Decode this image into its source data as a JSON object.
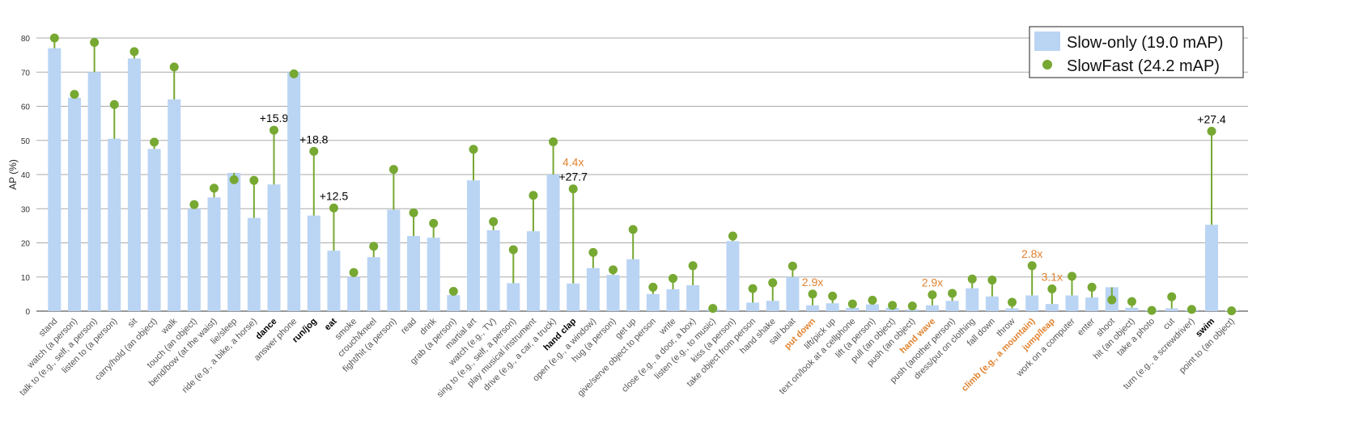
{
  "chart_data": {
    "type": "bar_dot",
    "y_label": "AP (%)",
    "ylim": [
      0,
      80
    ],
    "yticks": [
      0,
      10,
      20,
      30,
      40,
      50,
      60,
      70,
      80
    ],
    "grid": true,
    "legend": "upper right",
    "categories": [
      "stand",
      "watch (a person)",
      "talk to (e.g., self, a person)",
      "listen to (a person)",
      "sit",
      "carry/hold (an object)",
      "walk",
      "touch (an object)",
      "bend/bow (at the waist)",
      "lie/sleep",
      "ride (e.g., a bike, a horse)",
      "dance",
      "answer phone",
      "run/jog",
      "eat",
      "smoke",
      "crouch/kneel",
      "fight/hit (a person)",
      "read",
      "drink",
      "grab (a person)",
      "martial art",
      "watch (e.g., TV)",
      "sing to (e.g., self, a person)",
      "play musical instrument",
      "drive (e.g., a car, a truck)",
      "hand clap",
      "open (e.g., a window)",
      "hug (a person)",
      "get up",
      "give/serve object to person",
      "write",
      "close (e.g., a door, a box)",
      "listen (e.g., to music)",
      "kiss (a person)",
      "take object from person",
      "hand shake",
      "sail boat",
      "put down",
      "lift/pick up",
      "text on/look at a cellphone",
      "lift (a person)",
      "pull (an object)",
      "push (an object)",
      "hand wave",
      "push (another person)",
      "dress/put on clothing",
      "fall down",
      "throw",
      "climb (e.g., a mountain)",
      "jump/leap",
      "work on a computer",
      "enter",
      "shoot",
      "hit (an object)",
      "take a photo",
      "cut",
      "turn (e.g., a screwdriver)",
      "swim",
      "point to (an object)"
    ],
    "category_colors": [
      null,
      null,
      null,
      null,
      null,
      null,
      null,
      null,
      null,
      null,
      null,
      "#000000",
      null,
      "#000000",
      "#000000",
      null,
      null,
      null,
      null,
      null,
      null,
      null,
      null,
      null,
      null,
      null,
      "#000000",
      null,
      null,
      null,
      null,
      null,
      null,
      null,
      null,
      null,
      null,
      null,
      "#e0822e",
      null,
      null,
      null,
      null,
      null,
      "#e0822e",
      null,
      null,
      null,
      null,
      "#e0822e",
      "#e0822e",
      null,
      null,
      null,
      null,
      null,
      null,
      null,
      "#000000",
      null
    ],
    "series": [
      {
        "name": "Slow-only (19.0 mAP)",
        "color": "#bad4f4",
        "values": [
          77,
          62.5,
          70,
          50.5,
          74,
          47.5,
          62,
          30,
          33.3,
          40.5,
          27.3,
          37.1,
          70,
          28,
          17.7,
          10,
          15.8,
          29.7,
          22,
          21.5,
          4.7,
          38.3,
          23.7,
          8.2,
          23.4,
          40,
          8.1,
          12.6,
          10.6,
          15.2,
          5,
          6.4,
          7.6,
          0.5,
          20.5,
          2.5,
          3,
          10,
          1.7,
          2.3,
          1,
          2,
          1,
          0.5,
          1.7,
          3,
          6.7,
          4.3,
          0.8,
          4.6,
          2.1,
          4.6,
          4,
          7,
          1,
          0.3,
          0.8,
          0.3,
          25.3,
          0.1
        ]
      },
      {
        "name": "SlowFast (24.2 mAP)",
        "color": "#76a832",
        "values": [
          80,
          63.5,
          78.7,
          60.5,
          76,
          49.5,
          71.5,
          31.2,
          36,
          38.5,
          38.3,
          53,
          69.5,
          46.8,
          30.2,
          11.3,
          19,
          41.5,
          28.8,
          25.7,
          5.8,
          47.4,
          26.2,
          18,
          33.9,
          49.6,
          35.8,
          17.2,
          12.1,
          23.9,
          7,
          9.6,
          13.3,
          0.8,
          22,
          6.6,
          8.3,
          13.2,
          5,
          4.4,
          2.1,
          3.2,
          1.7,
          1.5,
          4.8,
          5.2,
          9.4,
          9.1,
          2.6,
          13.3,
          6.5,
          10.2,
          7,
          3.3,
          2.8,
          0.2,
          4.2,
          0.5,
          52.7,
          0.1
        ]
      }
    ],
    "annotations": [
      null,
      null,
      null,
      null,
      null,
      null,
      null,
      null,
      null,
      null,
      null,
      [
        {
          "text": "+15.9",
          "color": "#000000"
        }
      ],
      null,
      [
        {
          "text": "+18.8",
          "color": "#000000"
        }
      ],
      [
        {
          "text": "+12.5",
          "color": "#000000"
        }
      ],
      null,
      null,
      null,
      null,
      null,
      null,
      null,
      null,
      null,
      null,
      null,
      [
        {
          "text": "+27.7",
          "color": "#000000"
        },
        {
          "text": "4.4x",
          "color": "#e0822e"
        }
      ],
      null,
      null,
      null,
      null,
      null,
      null,
      null,
      null,
      null,
      null,
      null,
      [
        {
          "text": "2.9x",
          "color": "#e0822e"
        }
      ],
      null,
      null,
      null,
      null,
      null,
      [
        {
          "text": "2.9x",
          "color": "#e0822e"
        }
      ],
      null,
      null,
      null,
      null,
      [
        {
          "text": "2.8x",
          "color": "#e0822e"
        }
      ],
      [
        {
          "text": "3.1x",
          "color": "#e0822e"
        }
      ],
      null,
      null,
      null,
      null,
      null,
      null,
      null,
      [
        {
          "text": "+27.4",
          "color": "#000000"
        }
      ],
      null
    ]
  }
}
